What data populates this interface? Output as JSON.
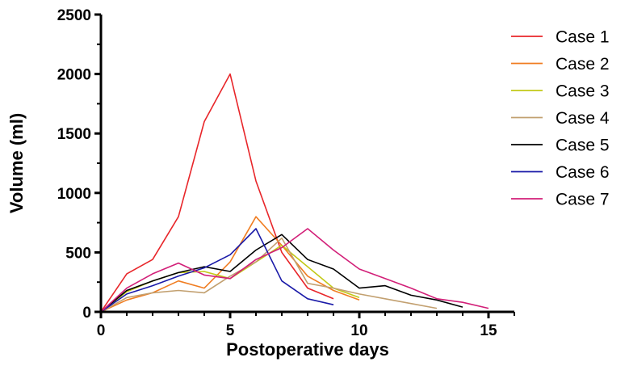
{
  "chart_data": {
    "type": "line",
    "title": "",
    "xlabel": "Postoperative days",
    "ylabel": "Volume (ml)",
    "xlim": [
      0,
      16
    ],
    "ylim": [
      0,
      2500
    ],
    "xticks": [
      0,
      5,
      10,
      15
    ],
    "yticks": [
      0,
      500,
      1000,
      1500,
      2000,
      2500
    ],
    "grid": false,
    "legend": "right",
    "series": [
      {
        "name": "Case 1",
        "color": "#e8262a",
        "x": [
          0,
          1,
          2,
          3,
          4,
          5,
          6,
          7,
          8,
          9
        ],
        "y": [
          0,
          320,
          440,
          800,
          1600,
          2000,
          1100,
          500,
          200,
          110
        ]
      },
      {
        "name": "Case 2",
        "color": "#f07d22",
        "x": [
          0,
          1,
          2,
          3,
          4,
          5,
          6,
          7,
          8,
          9,
          10
        ],
        "y": [
          0,
          100,
          160,
          260,
          200,
          420,
          800,
          560,
          300,
          180,
          100
        ]
      },
      {
        "name": "Case 3",
        "color": "#c2c917",
        "x": [
          0,
          1,
          2,
          3,
          4,
          5,
          6,
          7,
          8,
          9,
          10
        ],
        "y": [
          0,
          170,
          260,
          330,
          340,
          280,
          420,
          560,
          380,
          200,
          120
        ]
      },
      {
        "name": "Case 4",
        "color": "#c2a070",
        "x": [
          0,
          1,
          2,
          3,
          4,
          5,
          6,
          7,
          8,
          9,
          10,
          11,
          12,
          13
        ],
        "y": [
          0,
          120,
          160,
          180,
          160,
          300,
          420,
          620,
          240,
          200,
          150,
          110,
          70,
          30
        ]
      },
      {
        "name": "Case 5",
        "color": "#000000",
        "x": [
          0,
          1,
          2,
          3,
          4,
          5,
          6,
          7,
          8,
          9,
          10,
          11,
          12,
          13,
          14
        ],
        "y": [
          0,
          180,
          260,
          330,
          380,
          340,
          520,
          650,
          440,
          360,
          200,
          220,
          140,
          100,
          40
        ]
      },
      {
        "name": "Case 6",
        "color": "#1a1aa8",
        "x": [
          0,
          1,
          2,
          3,
          4,
          5,
          6,
          7,
          8,
          9
        ],
        "y": [
          0,
          150,
          220,
          300,
          370,
          480,
          700,
          260,
          110,
          60
        ]
      },
      {
        "name": "Case 7",
        "color": "#d21f78",
        "x": [
          0,
          1,
          2,
          3,
          4,
          5,
          6,
          7,
          8,
          9,
          10,
          11,
          12,
          13,
          14,
          15
        ],
        "y": [
          0,
          200,
          320,
          410,
          310,
          280,
          440,
          540,
          700,
          520,
          360,
          280,
          200,
          110,
          80,
          30
        ]
      }
    ]
  }
}
